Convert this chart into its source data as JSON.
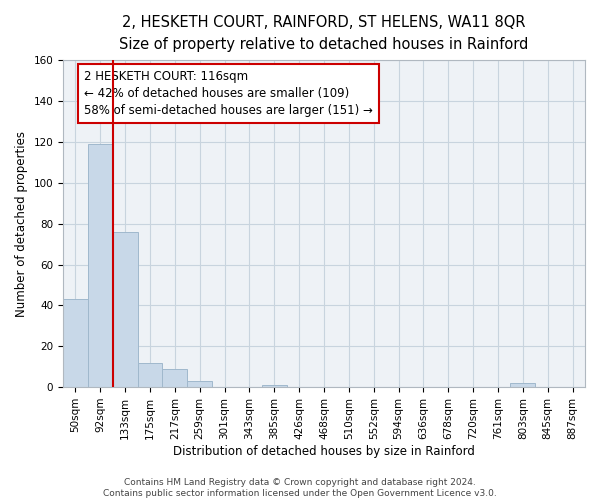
{
  "title": "2, HESKETH COURT, RAINFORD, ST HELENS, WA11 8QR",
  "subtitle": "Size of property relative to detached houses in Rainford",
  "xlabel": "Distribution of detached houses by size in Rainford",
  "ylabel": "Number of detached properties",
  "bar_labels": [
    "50sqm",
    "92sqm",
    "133sqm",
    "175sqm",
    "217sqm",
    "259sqm",
    "301sqm",
    "343sqm",
    "385sqm",
    "426sqm",
    "468sqm",
    "510sqm",
    "552sqm",
    "594sqm",
    "636sqm",
    "678sqm",
    "720sqm",
    "761sqm",
    "803sqm",
    "845sqm",
    "887sqm"
  ],
  "bar_values": [
    43,
    119,
    76,
    12,
    9,
    3,
    0,
    0,
    1,
    0,
    0,
    0,
    0,
    0,
    0,
    0,
    0,
    0,
    2,
    0,
    0
  ],
  "bar_color": "#c8d8e8",
  "bar_edgecolor": "#a0b8cc",
  "vline_x": 1.5,
  "vline_color": "#cc0000",
  "ylim": [
    0,
    160
  ],
  "yticks": [
    0,
    20,
    40,
    60,
    80,
    100,
    120,
    140,
    160
  ],
  "annotation_line1": "2 HESKETH COURT: 116sqm",
  "annotation_line2": "← 42% of detached houses are smaller (109)",
  "annotation_line3": "58% of semi-detached houses are larger (151) →",
  "annotation_box_color": "#cc0000",
  "background_color": "#eef2f6",
  "footer": "Contains HM Land Registry data © Crown copyright and database right 2024.\nContains public sector information licensed under the Open Government Licence v3.0.",
  "title_fontsize": 10.5,
  "subtitle_fontsize": 9.5,
  "axis_label_fontsize": 8.5,
  "tick_fontsize": 7.5,
  "annotation_fontsize": 8.5,
  "footer_fontsize": 6.5
}
